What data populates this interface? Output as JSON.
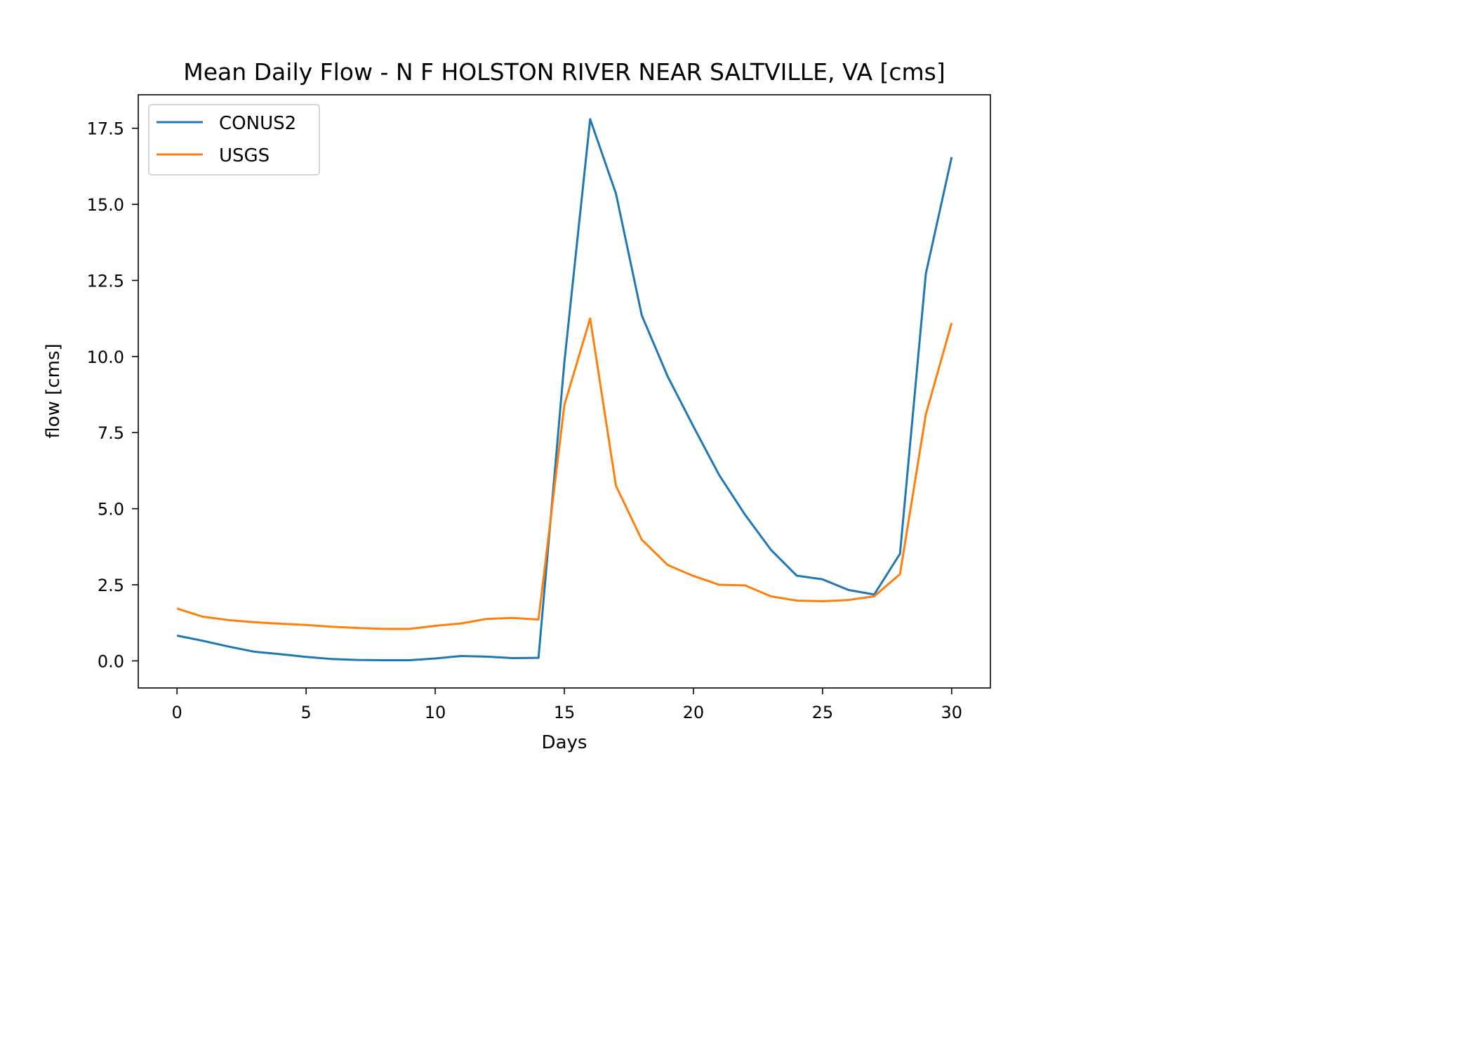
{
  "chart_data": {
    "type": "line",
    "title": "Mean Daily Flow - N F HOLSTON RIVER NEAR SALTVILLE, VA [cms]",
    "xlabel": "Days",
    "ylabel": "flow [cms]",
    "xlim": [
      -1.5,
      31.5
    ],
    "ylim": [
      -0.89,
      18.6
    ],
    "xticks": [
      0,
      5,
      10,
      15,
      20,
      25,
      30
    ],
    "yticks": [
      0.0,
      2.5,
      5.0,
      7.5,
      10.0,
      12.5,
      15.0,
      17.5
    ],
    "xtick_labels": [
      "0",
      "5",
      "10",
      "15",
      "20",
      "25",
      "30"
    ],
    "ytick_labels": [
      "0.0",
      "2.5",
      "5.0",
      "7.5",
      "10.0",
      "12.5",
      "15.0",
      "17.5"
    ],
    "grid": false,
    "legend": "upper-left",
    "x": [
      0,
      1,
      2,
      3,
      4,
      5,
      6,
      7,
      8,
      9,
      10,
      11,
      12,
      13,
      14,
      15,
      16,
      17,
      18,
      19,
      20,
      21,
      22,
      23,
      24,
      25,
      26,
      27,
      28,
      29,
      30
    ],
    "series": [
      {
        "name": "CONUS2",
        "color": "#1f77b4",
        "values": [
          0.83,
          0.66,
          0.47,
          0.3,
          0.22,
          0.13,
          0.06,
          0.03,
          0.02,
          0.02,
          0.08,
          0.16,
          0.14,
          0.09,
          0.1,
          9.8,
          17.8,
          15.35,
          11.35,
          9.35,
          7.7,
          6.1,
          4.8,
          3.65,
          2.8,
          2.68,
          2.33,
          2.18,
          3.52,
          12.72,
          16.55
        ]
      },
      {
        "name": "USGS",
        "color": "#ff7f0e",
        "values": [
          1.72,
          1.45,
          1.34,
          1.27,
          1.22,
          1.18,
          1.12,
          1.08,
          1.05,
          1.05,
          1.15,
          1.23,
          1.38,
          1.41,
          1.36,
          8.4,
          11.25,
          5.75,
          3.98,
          3.15,
          2.79,
          2.5,
          2.48,
          2.12,
          1.98,
          1.96,
          2.0,
          2.12,
          2.85,
          8.1,
          11.1
        ]
      }
    ]
  }
}
